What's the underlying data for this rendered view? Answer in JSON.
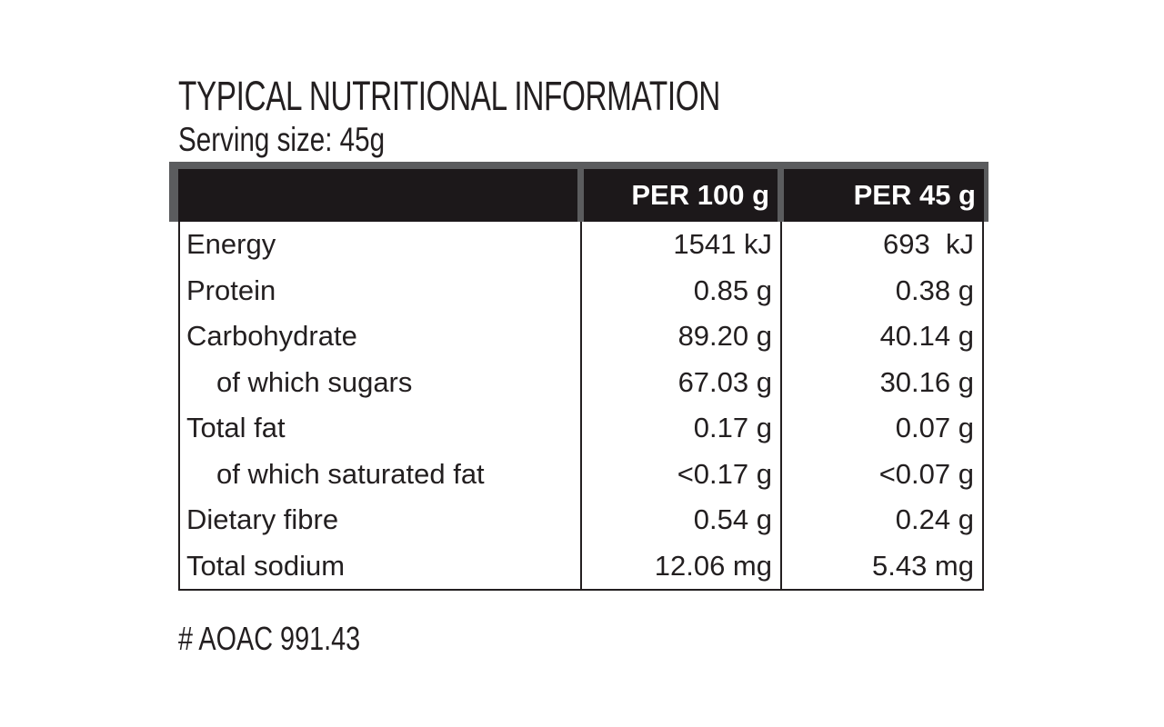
{
  "title": "TYPICAL NUTRITIONAL INFORMATION",
  "serving_size": "Serving size: 45g",
  "table": {
    "columns": [
      "",
      "PER 100 g",
      "PER 45 g"
    ],
    "rows": [
      {
        "label": "Energy",
        "indent": false,
        "per_100g": "1541 kJ",
        "per_45g": "693  kJ"
      },
      {
        "label": "Protein",
        "indent": false,
        "per_100g": "0.85 g",
        "per_45g": "0.38 g"
      },
      {
        "label": "Carbohydrate",
        "indent": false,
        "per_100g": "89.20 g",
        "per_45g": "40.14 g"
      },
      {
        "label": "of which sugars",
        "indent": true,
        "per_100g": "67.03 g",
        "per_45g": "30.16 g"
      },
      {
        "label": "Total fat",
        "indent": false,
        "per_100g": "0.17 g",
        "per_45g": "0.07 g"
      },
      {
        "label": "of which saturated fat",
        "indent": true,
        "per_100g": "<0.17 g",
        "per_45g": "<0.07 g"
      },
      {
        "label": "Dietary fibre",
        "indent": false,
        "per_100g": "0.54 g",
        "per_45g": "0.24 g"
      },
      {
        "label": "Total sodium",
        "indent": false,
        "per_100g": "12.06 mg",
        "per_45g": "5.43 mg"
      }
    ]
  },
  "footnote": "# AOAC 991.43",
  "colors": {
    "text": "#231f20",
    "header_background": "#1c181a",
    "header_text": "#ffffff",
    "header_frame_gray": "#5b5c5e",
    "table_border": "#231f20",
    "page_background": "#ffffff"
  }
}
